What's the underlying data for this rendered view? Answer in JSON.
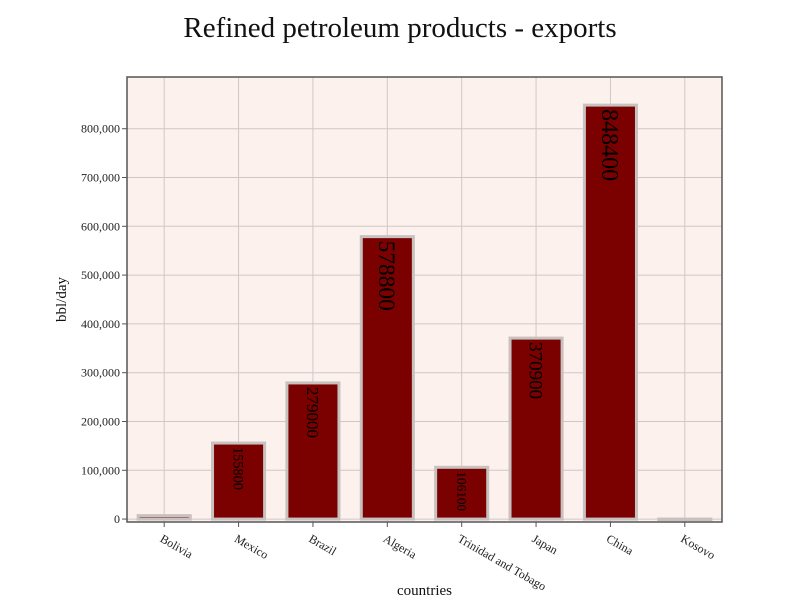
{
  "colors": {
    "plot_background": "#fdf1ee",
    "bar_fill": "#7b0000",
    "bar_stroke": "#c7c1c0",
    "grid": "#cfc7c6",
    "axis": "#555555"
  },
  "chart_data": {
    "type": "bar",
    "title": "Refined petroleum products - exports",
    "xlabel": "countries",
    "ylabel": "bbl/day",
    "categories": [
      "Bolivia",
      "Mexico",
      "Brazil",
      "Algeria",
      "Trinidad and Tobago",
      "Japan",
      "China",
      "Kosovo"
    ],
    "values": [
      7000,
      155800,
      279000,
      578800,
      106100,
      370900,
      848400,
      0
    ],
    "data_labels": [
      "",
      "155800",
      "279000",
      "578800",
      "106100",
      "370900",
      "848400",
      ""
    ],
    "yticks": [
      0,
      100000,
      200000,
      300000,
      400000,
      500000,
      600000,
      700000,
      800000
    ],
    "ytick_labels": [
      "0",
      "100,000",
      "200,000",
      "300,000",
      "400,000",
      "500,000",
      "600,000",
      "700,000",
      "800,000"
    ],
    "ylim": [
      -6000,
      906000
    ],
    "grid": true,
    "legend": "none"
  }
}
